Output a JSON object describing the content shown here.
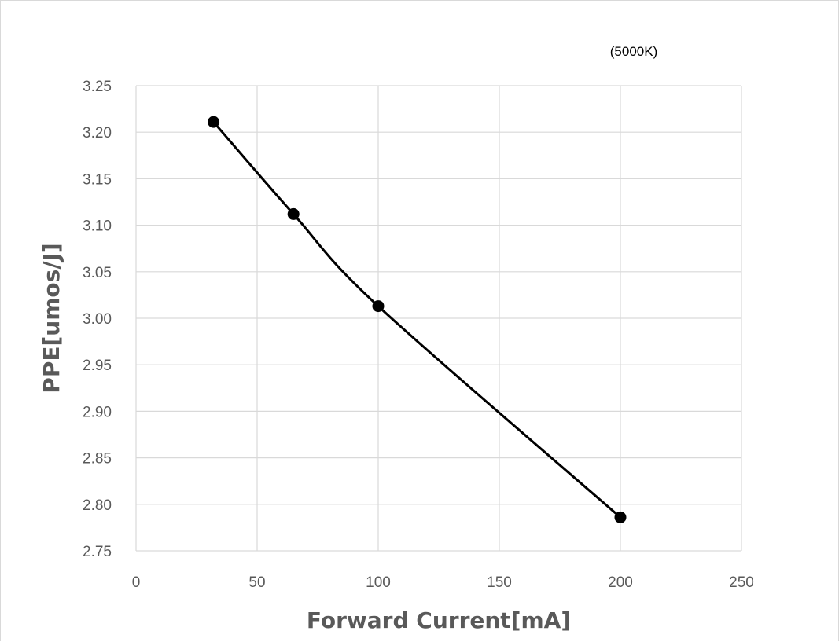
{
  "chart_data": {
    "type": "line",
    "title": "",
    "annotation": "(5000K)",
    "xlabel": "Forward Current[mA]",
    "ylabel": "PPE[umos/J]",
    "xlim": [
      0,
      250
    ],
    "ylim": [
      2.75,
      3.25
    ],
    "x_ticks": [
      "0",
      "50",
      "100",
      "150",
      "200",
      "250"
    ],
    "y_ticks": [
      "2.75",
      "2.80",
      "2.85",
      "2.90",
      "2.95",
      "3.00",
      "3.05",
      "3.10",
      "3.15",
      "3.20",
      "3.25"
    ],
    "grid": true,
    "legend": "none",
    "series": [
      {
        "x": [
          32,
          65,
          100,
          200
        ],
        "y": [
          3.211,
          3.112,
          3.013,
          2.786
        ],
        "color": "#000000",
        "marker": "circle",
        "smooth": true
      }
    ]
  }
}
